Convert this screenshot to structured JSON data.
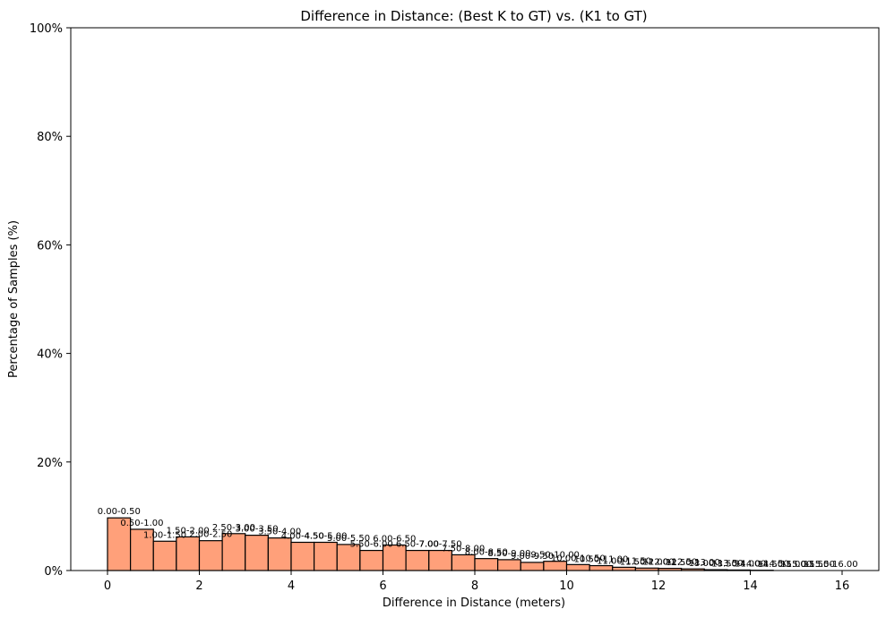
{
  "chart_data": {
    "type": "bar",
    "title": "Difference in Distance: (Best K to GT) vs. (K1 to GT)",
    "xlabel": "Difference in Distance (meters)",
    "ylabel": "Percentage of Samples (%)",
    "xlim": [
      -0.8,
      16.8
    ],
    "ylim": [
      0,
      100
    ],
    "xticks": [
      0,
      2,
      4,
      6,
      8,
      10,
      12,
      14,
      16
    ],
    "yticks": [
      "0%",
      "20%",
      "40%",
      "60%",
      "80%",
      "100%"
    ],
    "ytick_values": [
      0,
      20,
      40,
      60,
      80,
      100
    ],
    "bar_color": "#FFA07A",
    "edge_color": "#000000",
    "bins": [
      {
        "start": 0.0,
        "end": 0.5,
        "label": "0.00-0.50",
        "value": 9.7
      },
      {
        "start": 0.5,
        "end": 1.0,
        "label": "0.50-1.00",
        "value": 7.6
      },
      {
        "start": 1.0,
        "end": 1.5,
        "label": "1.00-1.50",
        "value": 5.4
      },
      {
        "start": 1.5,
        "end": 2.0,
        "label": "1.50-2.00",
        "value": 6.2
      },
      {
        "start": 2.0,
        "end": 2.5,
        "label": "2.00-2.50",
        "value": 5.5
      },
      {
        "start": 2.5,
        "end": 3.0,
        "label": "2.50-3.00",
        "value": 6.8
      },
      {
        "start": 3.0,
        "end": 3.5,
        "label": "3.00-3.50",
        "value": 6.5
      },
      {
        "start": 3.5,
        "end": 4.0,
        "label": "3.50-4.00",
        "value": 6.0
      },
      {
        "start": 4.0,
        "end": 4.5,
        "label": "4.00-4.50",
        "value": 5.2
      },
      {
        "start": 4.5,
        "end": 5.0,
        "label": "4.50-5.00",
        "value": 5.2
      },
      {
        "start": 5.0,
        "end": 5.5,
        "label": "5.00-5.50",
        "value": 4.8
      },
      {
        "start": 5.5,
        "end": 6.0,
        "label": "5.50-6.00",
        "value": 3.7
      },
      {
        "start": 6.0,
        "end": 6.5,
        "label": "6.00-6.50",
        "value": 4.7
      },
      {
        "start": 6.5,
        "end": 7.0,
        "label": "6.50-7.00",
        "value": 3.7
      },
      {
        "start": 7.0,
        "end": 7.5,
        "label": "7.00-7.50",
        "value": 3.7
      },
      {
        "start": 7.5,
        "end": 8.0,
        "label": "7.50-8.00",
        "value": 2.9
      },
      {
        "start": 8.0,
        "end": 8.5,
        "label": "8.00-8.50",
        "value": 2.2
      },
      {
        "start": 8.5,
        "end": 9.0,
        "label": "8.50-9.00",
        "value": 2.0
      },
      {
        "start": 9.0,
        "end": 9.5,
        "label": "9.00-9.50",
        "value": 1.5
      },
      {
        "start": 9.5,
        "end": 10.0,
        "label": "9.50-10.00",
        "value": 1.7
      },
      {
        "start": 10.0,
        "end": 10.5,
        "label": "10.00-10.50",
        "value": 1.1
      },
      {
        "start": 10.5,
        "end": 11.0,
        "label": "10.50-11.00",
        "value": 0.9
      },
      {
        "start": 11.0,
        "end": 11.5,
        "label": "11.00-11.50",
        "value": 0.6
      },
      {
        "start": 11.5,
        "end": 12.0,
        "label": "11.50-12.00",
        "value": 0.45
      },
      {
        "start": 12.0,
        "end": 12.5,
        "label": "12.00-12.50",
        "value": 0.4
      },
      {
        "start": 12.5,
        "end": 13.0,
        "label": "12.50-13.00",
        "value": 0.3
      },
      {
        "start": 13.0,
        "end": 13.5,
        "label": "13.00-13.50",
        "value": 0.15
      },
      {
        "start": 13.5,
        "end": 14.0,
        "label": "13.50-14.00",
        "value": 0.1
      },
      {
        "start": 14.0,
        "end": 14.5,
        "label": "14.00-14.50",
        "value": 0.05
      },
      {
        "start": 14.5,
        "end": 15.0,
        "label": "14.50-15.00",
        "value": 0.0
      },
      {
        "start": 15.0,
        "end": 15.5,
        "label": "15.00-15.50",
        "value": 0.0
      },
      {
        "start": 15.5,
        "end": 16.0,
        "label": "15.50-16.00",
        "value": 0.0
      }
    ]
  }
}
